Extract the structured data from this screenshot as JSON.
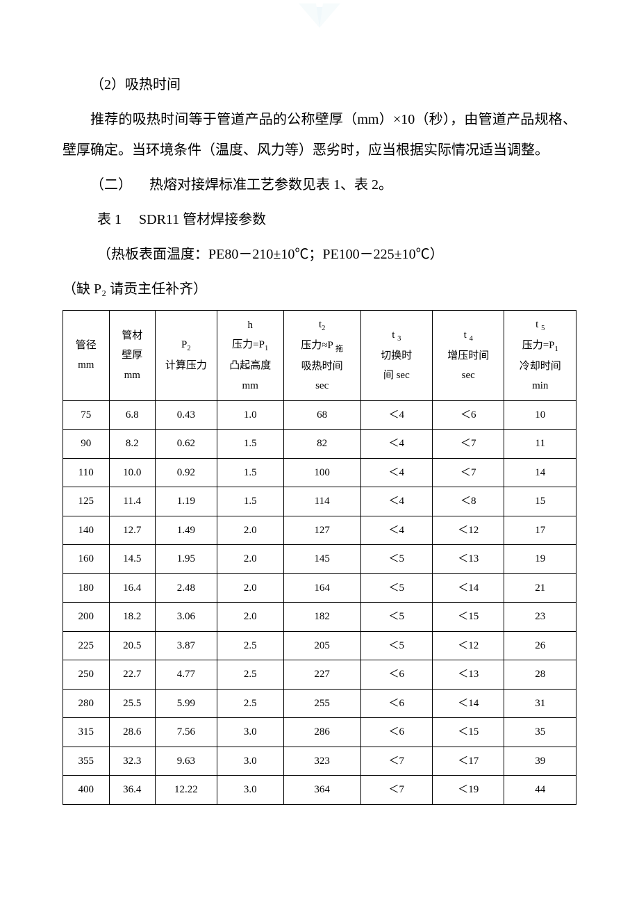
{
  "text": {
    "section_title": "（2）吸热时间",
    "para1": "推荐的吸热时间等于管道产品的公称壁厚（mm）×10（秒），由管道产品规格、壁厚确定。当环境条件（温度、风力等）恶劣时，应当根据实际情况适当调整。",
    "para2_prefix": "（二）  热熔对接焊标准工艺参数见表 1、表 2。",
    "table1_title": "表 1  SDR11 管材焊接参数",
    "table1_note": "（热板表面温度：PE80－210±10℃；PE100－225±10℃）",
    "table1_missing": "（缺 P₂ 请贡主任补齐）"
  },
  "table1": {
    "columns": [
      {
        "l1": "",
        "l2": "管径",
        "l3": "mm",
        "l4": ""
      },
      {
        "l1": "管材",
        "l2": "壁厚",
        "l3": "mm",
        "l4": ""
      },
      {
        "l1": "P₂",
        "l2": "",
        "l3": "计算压力",
        "l4": ""
      },
      {
        "l1": "h",
        "l2": "压力=P₁",
        "l3": "凸起高度",
        "l4": "mm"
      },
      {
        "l1": "t₂",
        "l2": "压力≈P 拖",
        "l3": "吸热时间",
        "l4": "sec"
      },
      {
        "l1": "t ₃",
        "l2": "切换时",
        "l3": "间 sec",
        "l4": ""
      },
      {
        "l1": "t ₄",
        "l2": "增压时间",
        "l3": "sec",
        "l4": ""
      },
      {
        "l1": "t ₅",
        "l2": "压力=P₁",
        "l3": "冷却时间",
        "l4": "min"
      }
    ],
    "rows": [
      [
        "75",
        "6.8",
        "0.43",
        "1.0",
        "68",
        "＜4",
        "＜6",
        "10"
      ],
      [
        "90",
        "8.2",
        "0.62",
        "1.5",
        "82",
        "＜4",
        "＜7",
        "11"
      ],
      [
        "110",
        "10.0",
        "0.92",
        "1.5",
        "100",
        "＜4",
        "＜7",
        "14"
      ],
      [
        "125",
        "11.4",
        "1.19",
        "1.5",
        "114",
        "＜4",
        "＜8",
        "15"
      ],
      [
        "140",
        "12.7",
        "1.49",
        "2.0",
        "127",
        "＜4",
        "＜12",
        "17"
      ],
      [
        "160",
        "14.5",
        "1.95",
        "2.0",
        "145",
        "＜5",
        "＜13",
        "19"
      ],
      [
        "180",
        "16.4",
        "2.48",
        "2.0",
        "164",
        "＜5",
        "＜14",
        "21"
      ],
      [
        "200",
        "18.2",
        "3.06",
        "2.0",
        "182",
        "＜5",
        "＜15",
        "23"
      ],
      [
        "225",
        "20.5",
        "3.87",
        "2.5",
        "205",
        "＜5",
        "＜12",
        "26"
      ],
      [
        "250",
        "22.7",
        "4.77",
        "2.5",
        "227",
        "＜6",
        "＜13",
        "28"
      ],
      [
        "280",
        "25.5",
        "5.99",
        "2.5",
        "255",
        "＜6",
        "＜14",
        "31"
      ],
      [
        "315",
        "28.6",
        "7.56",
        "3.0",
        "286",
        "＜6",
        "＜15",
        "35"
      ],
      [
        "355",
        "32.3",
        "9.63",
        "3.0",
        "323",
        "＜7",
        "＜17",
        "39"
      ],
      [
        "400",
        "36.4",
        "12.22",
        "3.0",
        "364",
        "＜7",
        "＜19",
        "44"
      ]
    ]
  },
  "colors": {
    "text": "#000000",
    "background": "#ffffff",
    "border": "#000000",
    "watermark": "#9fd4e8"
  }
}
